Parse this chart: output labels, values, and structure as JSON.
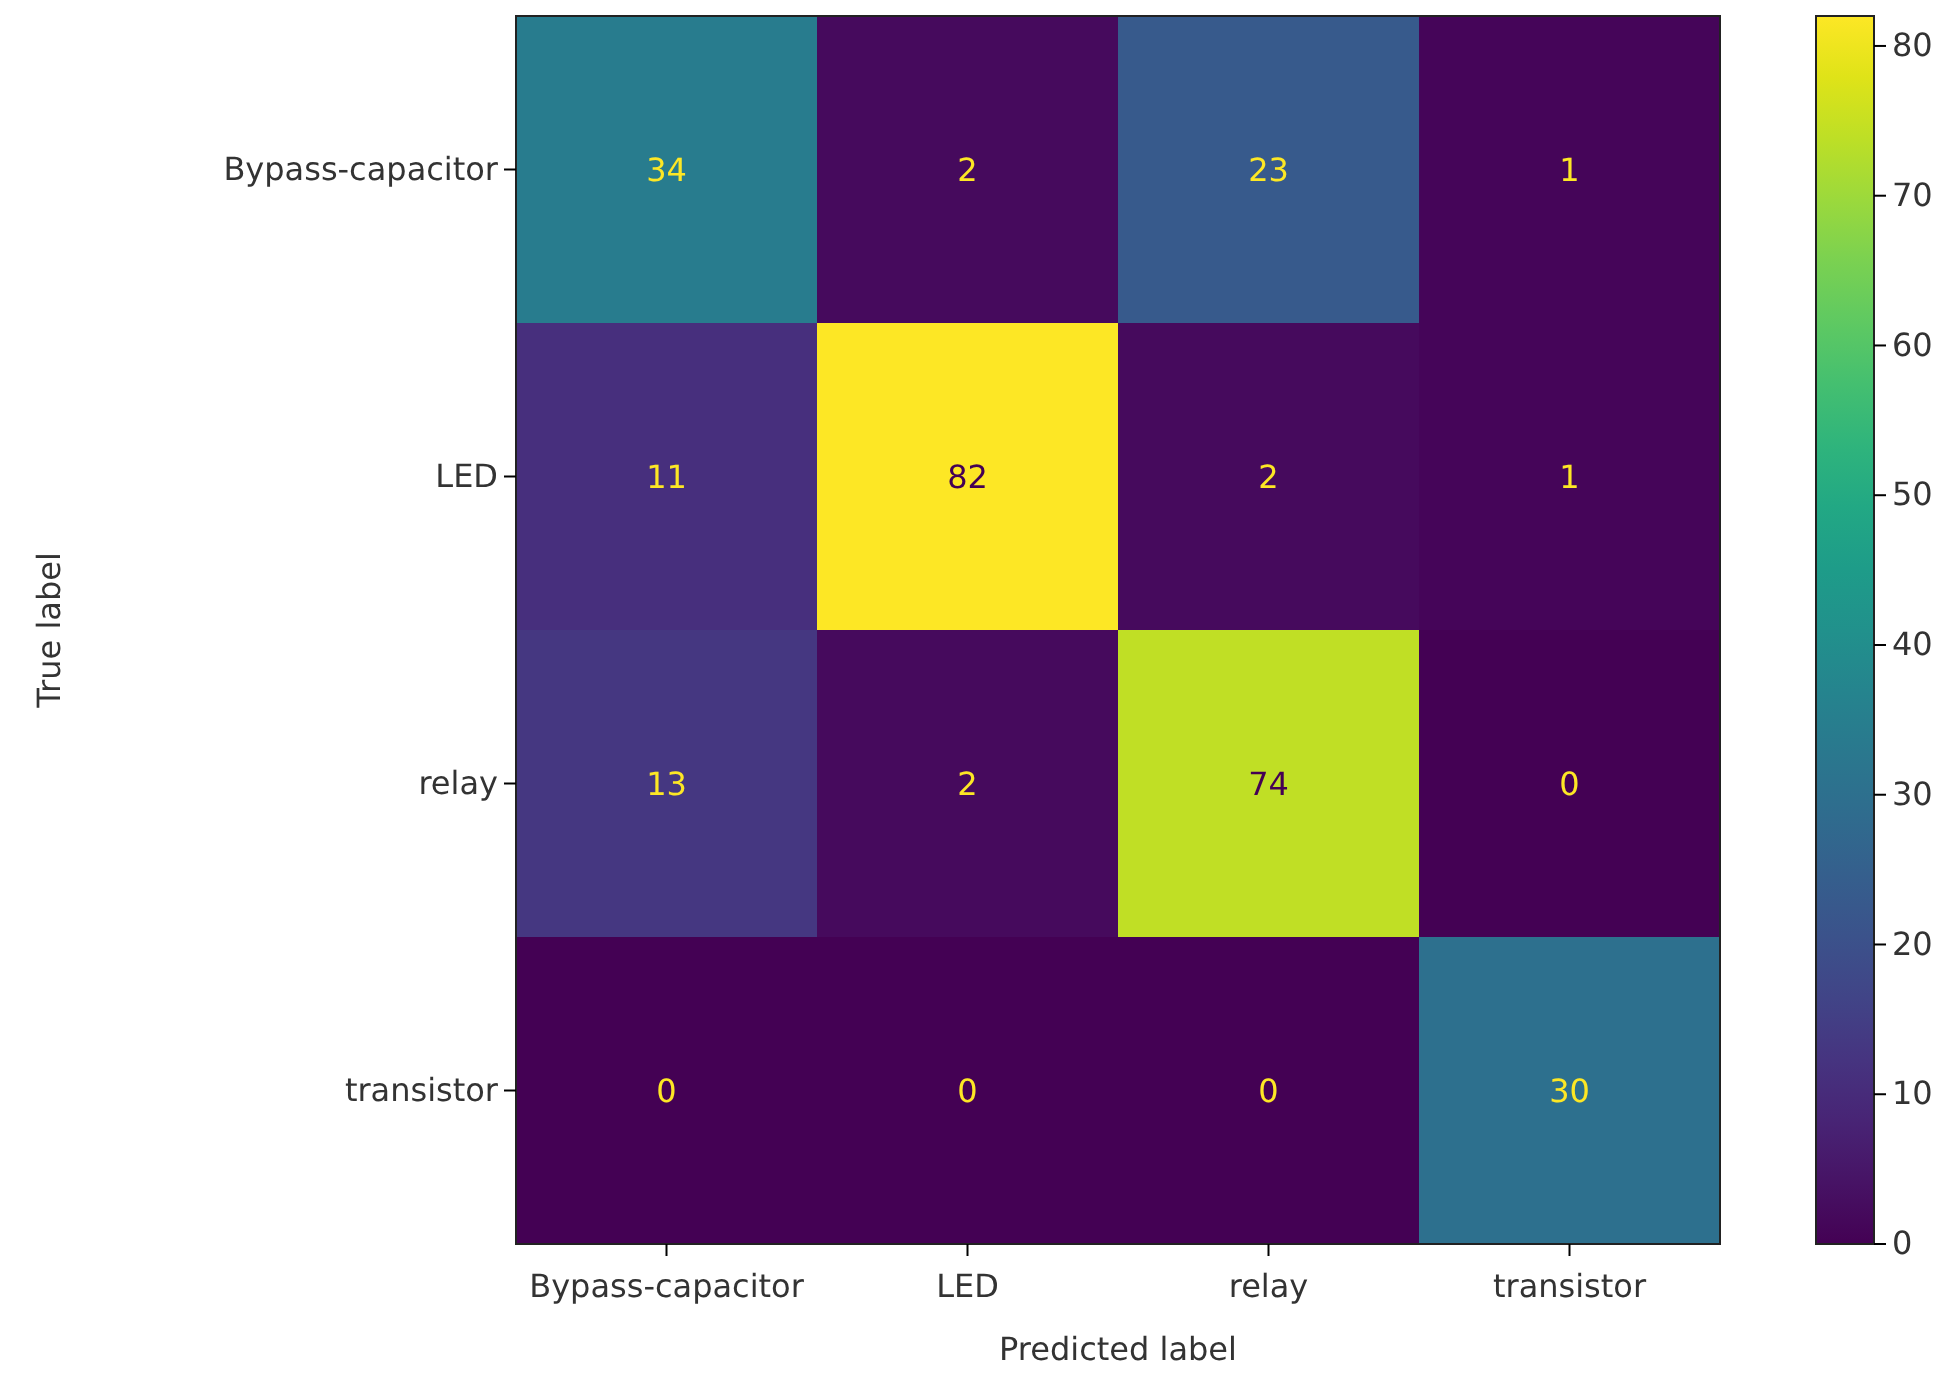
{
  "chart_data": {
    "type": "heatmap",
    "xlabel": "Predicted label",
    "ylabel": "True label",
    "categories": [
      "Bypass-capacitor",
      "LED",
      "relay",
      "transistor"
    ],
    "y_categories": [
      "Bypass-capacitor",
      "LED",
      "relay",
      "transistor"
    ],
    "cells": [
      [
        34,
        2,
        23,
        1
      ],
      [
        11,
        82,
        2,
        1
      ],
      [
        13,
        2,
        74,
        0
      ],
      [
        0,
        0,
        0,
        30
      ]
    ],
    "clim": [
      0,
      82
    ],
    "cticks": [
      0,
      10,
      20,
      30,
      40,
      50,
      60,
      70,
      80
    ],
    "data_labels": true
  }
}
